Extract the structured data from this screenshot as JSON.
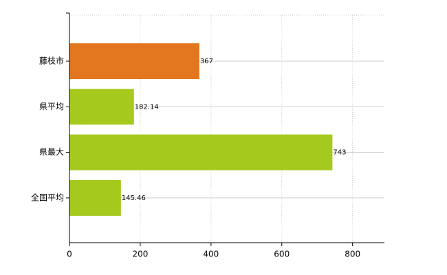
{
  "chart_data": {
    "type": "bar",
    "orientation": "horizontal",
    "categories": [
      "藤枝市",
      "県平均",
      "県最大",
      "全国平均"
    ],
    "values": [
      367,
      182.14,
      743,
      145.46
    ],
    "colors": [
      "#e2771f",
      "#a6c91e",
      "#a6c91e",
      "#a6c91e"
    ],
    "xlim": [
      0,
      890
    ],
    "xticks": [
      0,
      200,
      400,
      600,
      800
    ],
    "grid": true
  }
}
